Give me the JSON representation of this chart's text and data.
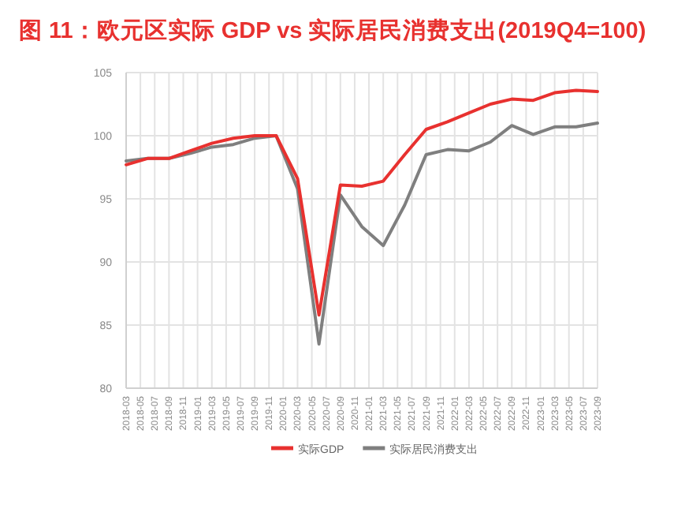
{
  "chart_data": {
    "type": "line",
    "title": "图 11：欧元区实际 GDP vs 实际居民消费支出(2019Q4=100)",
    "x": [
      "2018-03",
      "2018-06",
      "2018-09",
      "2018-12",
      "2019-03",
      "2019-06",
      "2019-09",
      "2019-12",
      "2020-03",
      "2020-06",
      "2020-09",
      "2020-12",
      "2021-03",
      "2021-06",
      "2021-09",
      "2021-12",
      "2022-03",
      "2022-06",
      "2022-09",
      "2022-12",
      "2023-03",
      "2023-06",
      "2023-09"
    ],
    "series": [
      {
        "name": "实际GDP",
        "color": "#e8312f",
        "values": [
          97.7,
          98.2,
          98.2,
          98.8,
          99.4,
          99.8,
          100.0,
          100.0,
          96.6,
          85.8,
          96.1,
          96.0,
          96.4,
          98.5,
          100.5,
          101.1,
          101.8,
          102.5,
          102.9,
          102.8,
          103.4,
          103.6,
          103.5
        ]
      },
      {
        "name": "实际居民消费支出",
        "color": "#7f7f7f",
        "values": [
          98.0,
          98.2,
          98.2,
          98.6,
          99.1,
          99.3,
          99.8,
          100.0,
          95.8,
          83.5,
          95.3,
          92.8,
          91.3,
          94.5,
          98.5,
          98.9,
          98.8,
          99.5,
          100.8,
          100.1,
          100.7,
          100.7,
          101.0
        ]
      }
    ],
    "xlim": [
      "2018-03",
      "2023-09"
    ],
    "xticks": [
      "2018-03",
      "2018-05",
      "2018-07",
      "2018-09",
      "2018-11",
      "2019-01",
      "2019-03",
      "2019-05",
      "2019-07",
      "2019-09",
      "2019-11",
      "2020-01",
      "2020-03",
      "2020-05",
      "2020-07",
      "2020-09",
      "2020-11",
      "2021-01",
      "2021-03",
      "2021-05",
      "2021-07",
      "2021-09",
      "2021-11",
      "2022-01",
      "2022-03",
      "2022-05",
      "2022-07",
      "2022-09",
      "2022-11",
      "2023-01",
      "2023-03",
      "2023-05",
      "2023-07",
      "2023-09"
    ],
    "ylim": [
      80,
      105
    ],
    "yticks": [
      80,
      85,
      90,
      95,
      100,
      105
    ],
    "grid": true,
    "legend": "bottom",
    "marker": "none",
    "line_style": "solid"
  }
}
